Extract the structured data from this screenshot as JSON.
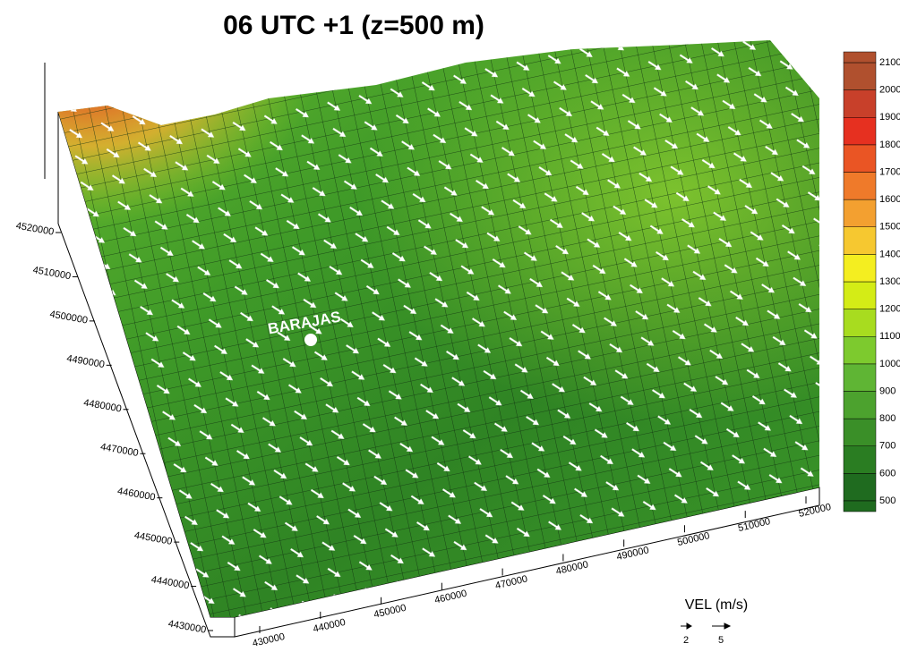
{
  "title": "06 UTC +1 (z=500 m)",
  "place_label": "BARAJAS",
  "x_axis": {
    "ticks": [
      "430000",
      "440000",
      "450000",
      "460000",
      "470000",
      "480000",
      "490000",
      "500000",
      "510000",
      "520000"
    ]
  },
  "y_axis": {
    "ticks": [
      "4430000",
      "4440000",
      "4450000",
      "4460000",
      "4470000",
      "4480000",
      "4490000",
      "4500000",
      "4510000",
      "4520000"
    ]
  },
  "colorbar": {
    "labels": [
      "500",
      "600",
      "700",
      "800",
      "900",
      "1000",
      "1100",
      "1200",
      "1300",
      "1400",
      "1500",
      "1600",
      "1700",
      "1800",
      "1900",
      "2000",
      "2100"
    ],
    "colors": [
      "#1f6b1f",
      "#2a7d22",
      "#3a8f28",
      "#4ca22e",
      "#5fb534",
      "#7dca2e",
      "#a8dc1f",
      "#d4ec16",
      "#f4ee20",
      "#f6c830",
      "#f3a030",
      "#ef7a2a",
      "#ea5524",
      "#e63020",
      "#c8402a",
      "#b0502e"
    ]
  },
  "vector_legend": {
    "title": "VEL (m/s)",
    "labels": [
      "2",
      "5"
    ]
  }
}
